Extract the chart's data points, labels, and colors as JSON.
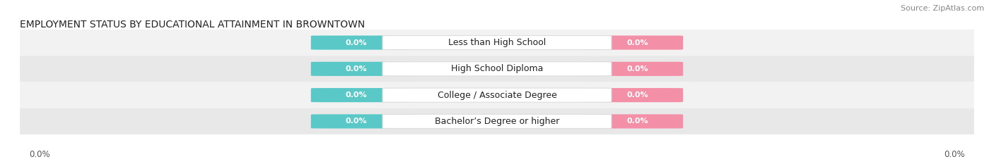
{
  "title": "EMPLOYMENT STATUS BY EDUCATIONAL ATTAINMENT IN BROWNTOWN",
  "source": "Source: ZipAtlas.com",
  "categories": [
    "Less than High School",
    "High School Diploma",
    "College / Associate Degree",
    "Bachelor’s Degree or higher"
  ],
  "labor_force_values": [
    0.0,
    0.0,
    0.0,
    0.0
  ],
  "unemployed_values": [
    0.0,
    0.0,
    0.0,
    0.0
  ],
  "labor_force_color": "#5bc8c8",
  "unemployed_color": "#f48fa8",
  "row_bg_even": "#f2f2f2",
  "row_bg_odd": "#e8e8e8",
  "label_box_color": "#ffffff",
  "label_box_edge": "#dddddd",
  "title_fontsize": 10,
  "source_fontsize": 8,
  "value_fontsize": 8,
  "cat_fontsize": 9,
  "legend_fontsize": 9,
  "axis_label_fontsize": 8.5,
  "x_left_label": "0.0%",
  "x_right_label": "0.0%"
}
